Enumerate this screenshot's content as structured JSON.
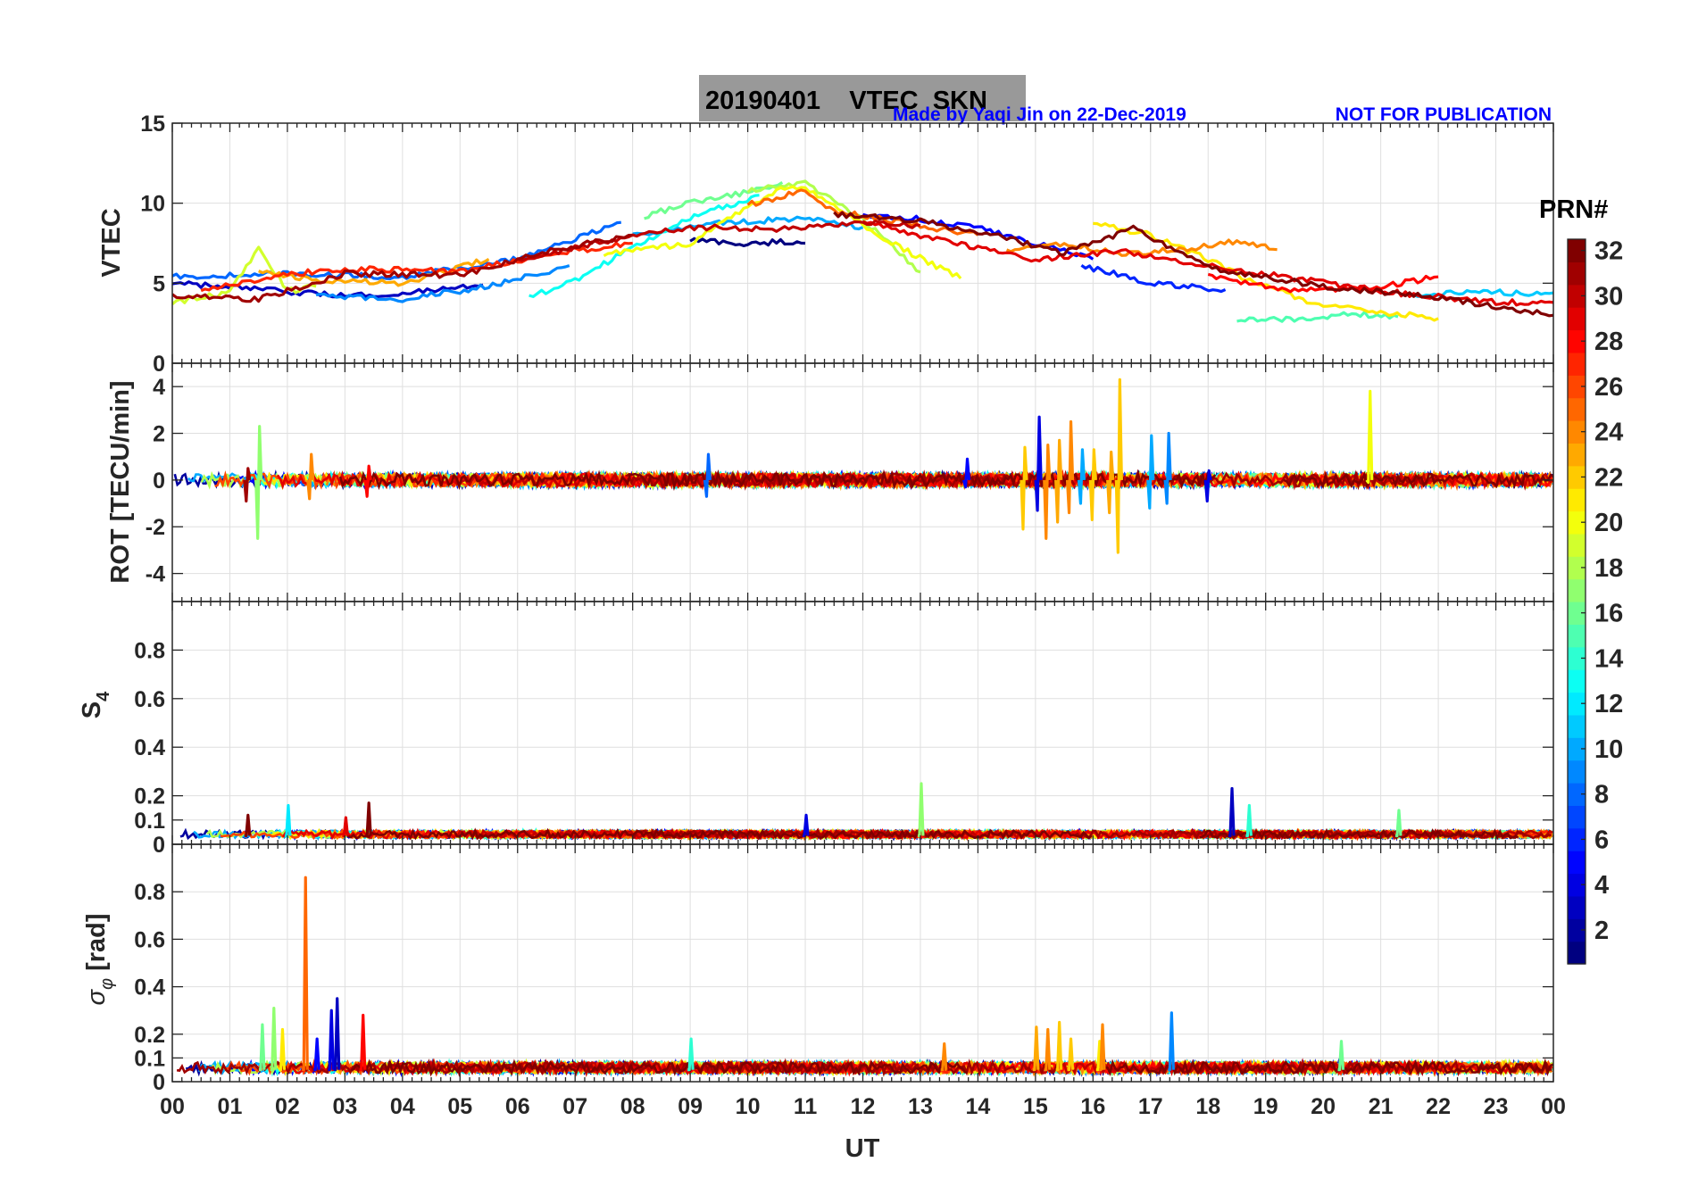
{
  "figure": {
    "title": "20190401    VTEC  SKN",
    "credit": "Made by Yaqi Jin on 22-Dec-2019",
    "notice": "NOT FOR PUBLICATION",
    "title_box_color": "#999999"
  },
  "colorbar": {
    "label": "PRN#",
    "range": [
      1,
      32
    ],
    "ticks": [
      "2",
      "4",
      "6",
      "8",
      "10",
      "12",
      "14",
      "16",
      "18",
      "20",
      "22",
      "24",
      "26",
      "28",
      "30",
      "32"
    ],
    "colormap": "jet"
  },
  "chart_data": [
    {
      "type": "line",
      "panel": "vtec",
      "ylabel": "VTEC",
      "xlabel": "",
      "xlim": [
        0,
        24
      ],
      "ylim": [
        0,
        15
      ],
      "yticks": [
        "0",
        "5",
        "10",
        "15"
      ],
      "grid": true,
      "series": [
        {
          "prn": 1,
          "x": [
            9.0,
            9.5,
            10.0,
            10.5,
            11.0
          ],
          "y": [
            7.7,
            7.6,
            7.4,
            7.6,
            7.5
          ]
        },
        {
          "prn": 3,
          "x": [
            0.0,
            1.5,
            3.0,
            4.5,
            5.4
          ],
          "y": [
            5.0,
            4.6,
            4.2,
            4.5,
            4.9
          ]
        },
        {
          "prn": 5,
          "x": [
            12.0,
            13.0,
            14.0,
            15.0,
            16.0
          ],
          "y": [
            9.3,
            9.0,
            8.5,
            7.5,
            6.5
          ]
        },
        {
          "prn": 6,
          "x": [
            15.8,
            16.5,
            17.0,
            18.3
          ],
          "y": [
            6.1,
            5.5,
            5.0,
            4.6
          ]
        },
        {
          "prn": 8,
          "x": [
            0.0,
            2.0,
            4.0,
            6.0,
            7.8
          ],
          "y": [
            5.4,
            5.6,
            5.4,
            6.5,
            8.8
          ]
        },
        {
          "prn": 9,
          "x": [
            2.5,
            4.0,
            5.5,
            6.9
          ],
          "y": [
            4.2,
            4.0,
            4.8,
            6.1
          ]
        },
        {
          "prn": 10,
          "x": [
            8.0,
            9.5,
            11.0,
            12.0
          ],
          "y": [
            8.0,
            8.8,
            9.0,
            8.5
          ]
        },
        {
          "prn": 11,
          "x": [
            21.5,
            22.5,
            23.5,
            24.0
          ],
          "y": [
            4.2,
            4.5,
            4.4,
            4.4
          ]
        },
        {
          "prn": 13,
          "x": [
            6.2,
            7.0,
            8.0,
            9.0,
            10.2
          ],
          "y": [
            4.1,
            5.2,
            7.2,
            9.1,
            10.5
          ]
        },
        {
          "prn": 15,
          "x": [
            18.5,
            19.5,
            20.5,
            21.3
          ],
          "y": [
            2.8,
            2.7,
            3.1,
            2.9
          ]
        },
        {
          "prn": 16,
          "x": [
            8.2,
            9.0,
            10.0,
            10.6
          ],
          "y": [
            9.2,
            10.0,
            10.7,
            11.3
          ]
        },
        {
          "prn": 18,
          "x": [
            10.0,
            11.0,
            12.0,
            13.0
          ],
          "y": [
            10.8,
            11.2,
            9.0,
            5.7
          ]
        },
        {
          "prn": 19,
          "x": [
            0.0,
            1.0,
            1.5,
            2.0,
            2.5
          ],
          "y": [
            3.8,
            4.4,
            7.3,
            4.5,
            4.8
          ]
        },
        {
          "prn": 20,
          "x": [
            7.5,
            9.0,
            10.5,
            11.0,
            12.5,
            13.7
          ],
          "y": [
            6.8,
            7.5,
            10.8,
            10.9,
            7.5,
            5.3
          ]
        },
        {
          "prn": 21,
          "x": [
            16.0,
            17.0,
            18.0,
            18.8,
            20.0,
            22.0
          ],
          "y": [
            8.8,
            8.0,
            6.5,
            5.0,
            3.6,
            2.8
          ]
        },
        {
          "prn": 23,
          "x": [
            1.5,
            2.5,
            4.0,
            5.5
          ],
          "y": [
            5.8,
            5.2,
            5.0,
            6.5
          ]
        },
        {
          "prn": 24,
          "x": [
            14.5,
            15.5,
            16.5,
            17.5,
            18.5,
            19.2
          ],
          "y": [
            7.1,
            7.5,
            6.8,
            7.1,
            7.6,
            7.1
          ]
        },
        {
          "prn": 25,
          "x": [
            10.0,
            11.0,
            11.5,
            13.0,
            14.0
          ],
          "y": [
            9.9,
            10.8,
            9.5,
            8.6,
            8.0
          ]
        },
        {
          "prn": 27,
          "x": [
            0.5,
            2.0,
            3.5,
            5.0,
            6.5,
            8.0
          ],
          "y": [
            4.5,
            5.6,
            5.9,
            5.7,
            6.8,
            7.5
          ]
        },
        {
          "prn": 28,
          "x": [
            18.0,
            19.5,
            21.0,
            22.0
          ],
          "y": [
            5.5,
            4.5,
            4.8,
            5.4
          ]
        },
        {
          "prn": 29,
          "x": [
            12.0,
            13.5,
            15.0,
            16.5,
            18.0,
            19.5,
            21.0,
            23.0,
            24.0
          ],
          "y": [
            8.8,
            7.6,
            6.5,
            7.0,
            6.1,
            5.3,
            4.5,
            3.8,
            3.8
          ]
        },
        {
          "prn": 30,
          "x": [
            6.0,
            7.5,
            9.0,
            10.5,
            12.0,
            13.0
          ],
          "y": [
            6.4,
            7.6,
            8.5,
            8.4,
            8.8,
            8.6
          ]
        },
        {
          "prn": 31,
          "x": [
            0.0,
            1.5,
            3.0,
            5.0,
            6.5,
            8.0
          ],
          "y": [
            4.2,
            4.0,
            5.6,
            5.5,
            7.0,
            8.0
          ]
        },
        {
          "prn": 32,
          "x": [
            11.5,
            13.0,
            14.5,
            15.5,
            16.7,
            18.0,
            20.0,
            22.0,
            24.0
          ],
          "y": [
            9.3,
            8.9,
            7.8,
            6.9,
            8.4,
            6.0,
            4.8,
            4.1,
            3.0
          ]
        }
      ]
    },
    {
      "type": "line",
      "panel": "rot",
      "ylabel": "ROT [TECU/min]",
      "xlabel": "",
      "xlim": [
        0,
        24
      ],
      "ylim": [
        -5.2,
        5.0
      ],
      "yticks": [
        "-4",
        "-2",
        "0",
        "2",
        "4"
      ],
      "grid": true,
      "baseline": 0,
      "spikes": [
        {
          "prn": 17,
          "x": 1.5,
          "min": -2.5,
          "max": 2.3
        },
        {
          "prn": 31,
          "x": 1.3,
          "min": -0.9,
          "max": 0.5
        },
        {
          "prn": 24,
          "x": 2.4,
          "min": -0.8,
          "max": 1.1
        },
        {
          "prn": 28,
          "x": 3.4,
          "min": -0.7,
          "max": 0.6
        },
        {
          "prn": 8,
          "x": 9.3,
          "min": -0.7,
          "max": 1.1
        },
        {
          "prn": 5,
          "x": 13.8,
          "min": -0.3,
          "max": 0.9
        },
        {
          "prn": 22,
          "x": 14.8,
          "min": -2.1,
          "max": 1.4
        },
        {
          "prn": 4,
          "x": 15.05,
          "min": -1.3,
          "max": 2.7
        },
        {
          "prn": 24,
          "x": 15.2,
          "min": -2.5,
          "max": 1.5
        },
        {
          "prn": 23,
          "x": 15.4,
          "min": -1.8,
          "max": 1.7
        },
        {
          "prn": 24,
          "x": 15.6,
          "min": -1.4,
          "max": 2.5
        },
        {
          "prn": 10,
          "x": 15.8,
          "min": -1.0,
          "max": 1.3
        },
        {
          "prn": 22,
          "x": 16.0,
          "min": -1.7,
          "max": 1.3
        },
        {
          "prn": 23,
          "x": 16.3,
          "min": -1.4,
          "max": 1.2
        },
        {
          "prn": 22,
          "x": 16.45,
          "min": -3.1,
          "max": 4.3
        },
        {
          "prn": 10,
          "x": 17.0,
          "min": -1.2,
          "max": 1.9
        },
        {
          "prn": 9,
          "x": 17.3,
          "min": -1.0,
          "max": 2.0
        },
        {
          "prn": 4,
          "x": 18.0,
          "min": -0.9,
          "max": 0.4
        },
        {
          "prn": 20,
          "x": 20.8,
          "min": -0.1,
          "max": 3.8
        }
      ]
    },
    {
      "type": "line",
      "panel": "s4",
      "ylabel": "S₄",
      "xlabel": "",
      "xlim": [
        0,
        24
      ],
      "ylim": [
        0,
        1.0
      ],
      "yticks": [
        "0",
        "0.1",
        "0.2",
        "0.4",
        "0.6",
        "0.8"
      ],
      "grid": true,
      "baseline": 0.035,
      "spikes": [
        {
          "prn": 32,
          "x": 1.3,
          "max": 0.12
        },
        {
          "prn": 12,
          "x": 2.0,
          "max": 0.16
        },
        {
          "prn": 29,
          "x": 3.0,
          "max": 0.11
        },
        {
          "prn": 32,
          "x": 3.4,
          "max": 0.17
        },
        {
          "prn": 4,
          "x": 11.0,
          "max": 0.12
        },
        {
          "prn": 17,
          "x": 13.0,
          "max": 0.25
        },
        {
          "prn": 3,
          "x": 18.4,
          "max": 0.23
        },
        {
          "prn": 14,
          "x": 18.7,
          "max": 0.16
        },
        {
          "prn": 16,
          "x": 21.3,
          "max": 0.14
        }
      ]
    },
    {
      "type": "line",
      "panel": "sigma_phi",
      "ylabel": "σ_φ [rad]",
      "xlabel": "UT",
      "xlim": [
        0,
        24
      ],
      "ylim": [
        0,
        1.0
      ],
      "yticks": [
        "0",
        "0.1",
        "0.2",
        "0.4",
        "0.6",
        "0.8"
      ],
      "xticks": [
        "00",
        "01",
        "02",
        "03",
        "04",
        "05",
        "06",
        "07",
        "08",
        "09",
        "10",
        "11",
        "12",
        "13",
        "14",
        "15",
        "16",
        "17",
        "18",
        "19",
        "20",
        "21",
        "22",
        "23",
        "00"
      ],
      "grid": true,
      "baseline": 0.05,
      "spikes": [
        {
          "prn": 16,
          "x": 1.55,
          "max": 0.24
        },
        {
          "prn": 17,
          "x": 1.75,
          "max": 0.31
        },
        {
          "prn": 21,
          "x": 1.9,
          "max": 0.22
        },
        {
          "prn": 25,
          "x": 2.3,
          "max": 0.86
        },
        {
          "prn": 5,
          "x": 2.5,
          "max": 0.18
        },
        {
          "prn": 4,
          "x": 2.75,
          "max": 0.3
        },
        {
          "prn": 3,
          "x": 2.85,
          "max": 0.35
        },
        {
          "prn": 28,
          "x": 3.3,
          "max": 0.28
        },
        {
          "prn": 24,
          "x": 13.4,
          "max": 0.16
        },
        {
          "prn": 23,
          "x": 15.0,
          "max": 0.23
        },
        {
          "prn": 24,
          "x": 15.2,
          "max": 0.22
        },
        {
          "prn": 22,
          "x": 15.4,
          "max": 0.25
        },
        {
          "prn": 22,
          "x": 15.6,
          "max": 0.18
        },
        {
          "prn": 21,
          "x": 16.1,
          "max": 0.17
        },
        {
          "prn": 24,
          "x": 16.15,
          "max": 0.24
        },
        {
          "prn": 9,
          "x": 17.35,
          "max": 0.29
        },
        {
          "prn": 14,
          "x": 9.0,
          "max": 0.18
        },
        {
          "prn": 16,
          "x": 20.3,
          "max": 0.17
        }
      ]
    }
  ]
}
